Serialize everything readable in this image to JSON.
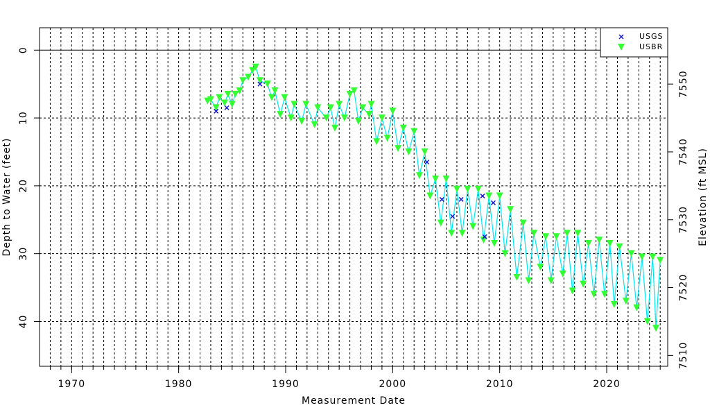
{
  "chart_data": {
    "type": "scatter",
    "x_label": "Measurement Date",
    "y_label": "Depth to Water (feet)",
    "y2_label": "Elevation (ft MSL)",
    "xlim": [
      1967.0,
      2025.7
    ],
    "xticks": [
      1970,
      1980,
      1990,
      2000,
      2010,
      2020
    ],
    "xminorticks": [
      1968,
      1969,
      1970,
      1971,
      1972,
      1973,
      1974,
      1975,
      1976,
      1977,
      1978,
      1979,
      1980,
      1981,
      1982,
      1983,
      1984,
      1985,
      1986,
      1987,
      1988,
      1989,
      1990,
      1991,
      1992,
      1993,
      1994,
      1995,
      1996,
      1997,
      1998,
      1999,
      2000,
      2001,
      2002,
      2003,
      2004,
      2005,
      2006,
      2007,
      2008,
      2009,
      2010,
      2011,
      2012,
      2013,
      2014,
      2015,
      2016,
      2017,
      2018,
      2019,
      2020,
      2021,
      2022,
      2023,
      2024,
      2025
    ],
    "ylim": [
      46.6,
      -3.3
    ],
    "yticks": [
      0,
      10,
      20,
      30,
      40
    ],
    "y2lim": [
      7508.4,
      7558.3
    ],
    "y2ticks": [
      7510,
      7520,
      7530,
      7540,
      7550
    ],
    "grid": true,
    "legend": "top-right",
    "line_color": "#00e5ee",
    "series": [
      {
        "name": "USGS",
        "color": "#1a1acc",
        "marker": "x",
        "x": [
          1983.5,
          1984.5,
          1987.6,
          2003.2,
          2004.6,
          2005.6,
          2006.4,
          2008.4,
          2008.6,
          2009.4
        ],
        "values": [
          9.0,
          8.5,
          5.0,
          16.5,
          22.0,
          24.5,
          22.0,
          21.5,
          27.5,
          22.5
        ]
      },
      {
        "name": "USBR",
        "color": "#33ff33",
        "marker": "triangle",
        "x": [
          1982.7,
          1983.0,
          1983.5,
          1983.8,
          1984.3,
          1984.6,
          1985.0,
          1985.3,
          1985.7,
          1986.0,
          1986.5,
          1986.9,
          1987.2,
          1987.6,
          1988.3,
          1988.7,
          1989.0,
          1989.5,
          1989.9,
          1990.5,
          1990.8,
          1991.5,
          1991.9,
          1992.7,
          1993.0,
          1993.8,
          1994.2,
          1994.6,
          1995.0,
          1995.5,
          1996.0,
          1996.4,
          1996.8,
          1997.2,
          1997.8,
          1998.0,
          1998.5,
          1999.0,
          1999.5,
          2000.0,
          2000.5,
          2001.0,
          2001.5,
          2002.0,
          2002.5,
          2003.0,
          2003.5,
          2004.0,
          2004.5,
          2005.0,
          2005.5,
          2006.0,
          2006.5,
          2007.0,
          2007.5,
          2008.0,
          2008.5,
          2009.0,
          2009.5,
          2010.0,
          2010.5,
          2011.0,
          2011.6,
          2012.2,
          2012.7,
          2013.2,
          2013.8,
          2014.3,
          2014.8,
          2015.3,
          2015.9,
          2016.3,
          2016.8,
          2017.3,
          2017.8,
          2018.3,
          2018.8,
          2019.3,
          2019.8,
          2020.3,
          2020.7,
          2021.2,
          2021.8,
          2022.3,
          2022.8,
          2023.3,
          2023.8,
          2024.3,
          2024.6,
          2025.0
        ],
        "values": [
          7.5,
          7.3,
          8.5,
          7.0,
          7.8,
          6.5,
          8.0,
          6.5,
          6.0,
          4.5,
          4.0,
          3.0,
          2.5,
          4.5,
          5.0,
          7.0,
          6.0,
          9.5,
          7.0,
          10.0,
          8.0,
          10.5,
          8.0,
          11.0,
          8.5,
          10.0,
          8.5,
          11.5,
          8.0,
          10.0,
          6.5,
          6.0,
          10.5,
          8.5,
          9.5,
          8.0,
          13.5,
          10.0,
          13.0,
          9.0,
          14.5,
          11.5,
          15.0,
          12.0,
          18.5,
          15.0,
          21.5,
          19.0,
          25.5,
          19.0,
          27.0,
          20.5,
          27.0,
          20.5,
          26.0,
          20.5,
          28.0,
          21.5,
          28.5,
          21.5,
          30.0,
          23.5,
          33.5,
          25.5,
          34.0,
          27.0,
          32.0,
          27.5,
          34.0,
          27.5,
          33.0,
          27.0,
          35.5,
          27.0,
          34.5,
          28.5,
          36.0,
          28.0,
          36.0,
          28.5,
          37.5,
          29.0,
          37.0,
          30.0,
          38.0,
          30.5,
          40.0,
          30.5,
          41.0,
          31.0
        ]
      }
    ]
  }
}
